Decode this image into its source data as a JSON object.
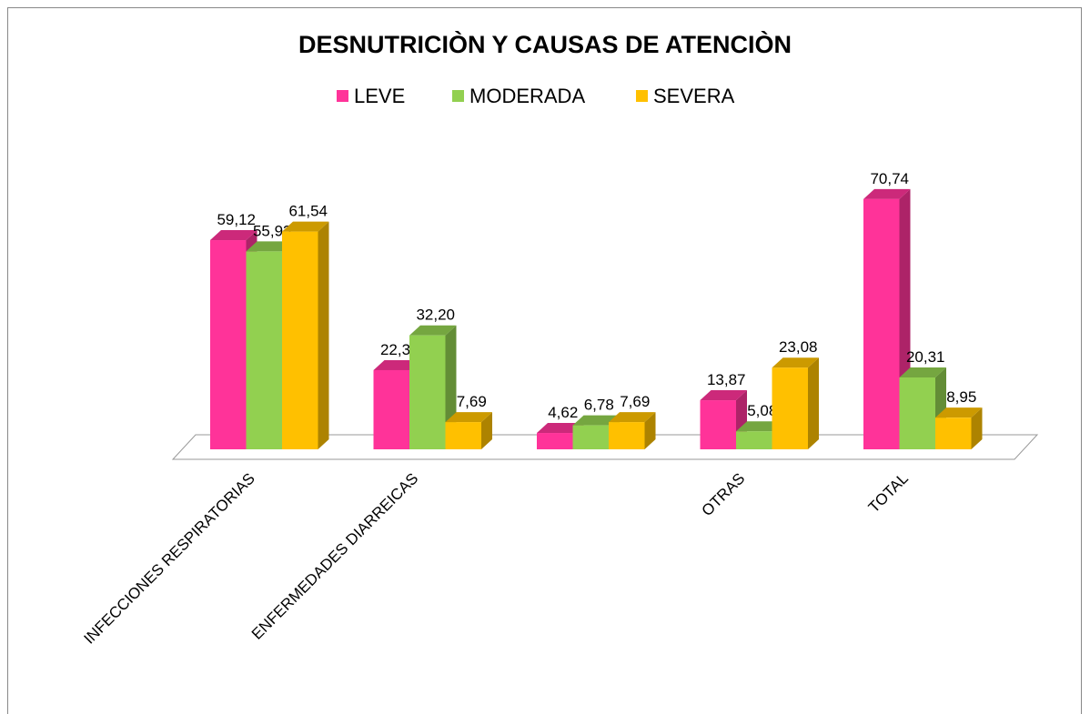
{
  "chart_data": {
    "type": "bar3d",
    "title": "DESNUTRICIÒN Y CAUSAS DE ATENCIÒN",
    "categories": [
      "INFECCIONES RESPIRATORIAS",
      "ENFERMEDADES DIARREICAS",
      null,
      "OTRAS",
      "TOTAL"
    ],
    "series": [
      {
        "name": "LEVE",
        "color": "#ff3399",
        "values": [
          59.12,
          22.38,
          4.62,
          13.87,
          70.74
        ],
        "value_labels": [
          "59,12",
          "22,38",
          "4,62",
          "13,87",
          "70,74"
        ]
      },
      {
        "name": "MODERADA",
        "color": "#92d050",
        "values": [
          55.93,
          32.2,
          6.78,
          5.08,
          20.31
        ],
        "value_labels": [
          "55,93",
          "32,20",
          "6,78",
          "5,08",
          "20,31"
        ]
      },
      {
        "name": "SEVERA",
        "color": "#ffc000",
        "values": [
          61.54,
          7.69,
          7.69,
          23.08,
          8.95
        ],
        "value_labels": [
          "61,54",
          "7,69",
          "7,69",
          "23,08",
          "8,95"
        ]
      }
    ],
    "legend": "top"
  }
}
